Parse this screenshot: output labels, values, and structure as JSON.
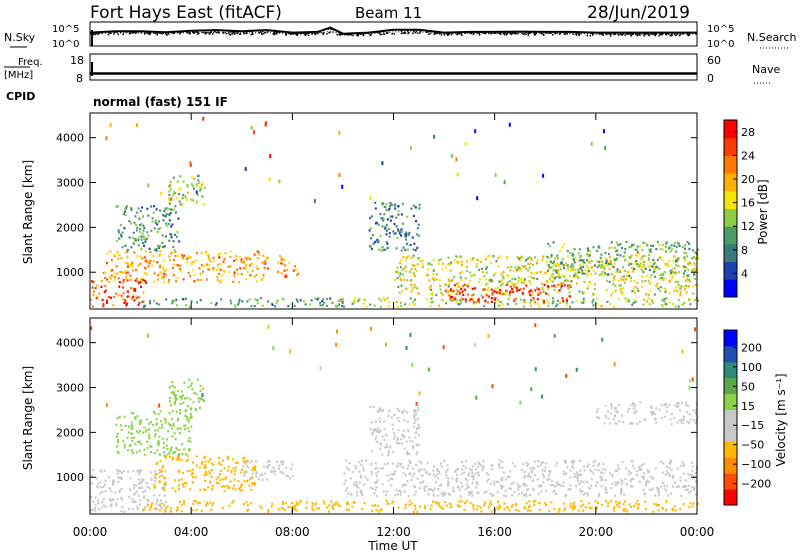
{
  "header": {
    "station": "Fort Hays East (fitACF)",
    "beam": "Beam 11",
    "date": "28/Jun/2019"
  },
  "panels": {
    "nsky": {
      "left_label": "N.Sky",
      "left_ticks": [
        "10^5",
        "10^0"
      ],
      "right_label": "N.Search",
      "right_ticks": [
        "10^5",
        "10^0"
      ]
    },
    "freq": {
      "left_label_1": "Freq.",
      "left_label_2": "[MHz]",
      "left_ticks": [
        "18",
        "8"
      ],
      "right_label": "Nave",
      "right_ticks": [
        "60",
        "0"
      ]
    },
    "cpid": {
      "label": "CPID",
      "mode": "normal (fast) 151 IF"
    }
  },
  "colors": {
    "power_scale": [
      "#0000ff",
      "#1d3fb0",
      "#3a7a7a",
      "#4c9c66",
      "#8ccd44",
      "#f4e400",
      "#ffb000",
      "#ff7a00",
      "#ff3a00",
      "#ff0000"
    ],
    "velocity_scale": [
      "#ff0000",
      "#ff4a00",
      "#ff8c00",
      "#ffb800",
      "#c8c8c8",
      "#c8c8c8",
      "#8ad44a",
      "#5aa846",
      "#2f8a7a",
      "#1f4fb0",
      "#0000ff"
    ]
  },
  "chart_data": [
    {
      "type": "line",
      "panel": "N.Sky / N.Search",
      "x": [
        "00:00",
        "01:00",
        "02:00",
        "03:00",
        "04:00",
        "05:00",
        "06:00",
        "07:00",
        "08:00",
        "09:00",
        "09:30",
        "10:00",
        "11:00",
        "12:00",
        "13:00",
        "14:00",
        "15:00",
        "16:00",
        "17:00",
        "18:00",
        "19:00",
        "20:00",
        "21:00",
        "22:00",
        "23:00",
        "24:00"
      ],
      "series": [
        {
          "name": "N.Sky",
          "values_log10": [
            2.6,
            3.0,
            3.0,
            2.7,
            3.1,
            3.3,
            3.0,
            3.3,
            2.6,
            2.8,
            4.0,
            2.3,
            2.6,
            3.4,
            3.4,
            2.6,
            2.8,
            2.8,
            2.9,
            2.8,
            2.8,
            2.6,
            2.6,
            2.6,
            2.6,
            2.6
          ]
        },
        {
          "name": "N.Search",
          "values_log10": [
            2.3,
            2.5,
            2.5,
            2.4,
            2.6,
            2.6,
            2.5,
            2.6,
            2.3,
            2.4,
            3.0,
            2.1,
            2.3,
            2.8,
            2.8,
            2.3,
            2.4,
            2.4,
            2.4,
            2.4,
            2.3,
            2.2,
            2.2,
            2.2,
            2.2,
            2.2
          ]
        }
      ],
      "yticks": [
        "10^0",
        "10^5"
      ]
    },
    {
      "type": "line",
      "panel": "Freq. / Nave",
      "x": [
        "00:00",
        "24:00"
      ],
      "series": [
        {
          "name": "Freq. [MHz]",
          "values": [
            10.5,
            10.5
          ]
        },
        {
          "name": "Nave",
          "values": [
            11,
            11
          ]
        }
      ],
      "ylim_left": [
        8,
        18
      ],
      "ylim_right": [
        0,
        60
      ]
    },
    {
      "type": "heatmap",
      "panel": "Power",
      "xlabel": "",
      "ylabel": "Slant Range [km]",
      "xticks": [
        "00:00",
        "04:00",
        "08:00",
        "12:00",
        "16:00",
        "20:00",
        "00:00"
      ],
      "yticks": [
        1000,
        2000,
        3000,
        4000
      ],
      "xlim_hours": [
        0,
        24
      ],
      "ylim": [
        180,
        4550
      ],
      "colorbar": {
        "label": "Power [dB]",
        "ticks": [
          4,
          8,
          12,
          16,
          20,
          24,
          28
        ],
        "range": [
          0,
          30
        ]
      },
      "regions": [
        {
          "t0": 0.0,
          "t1": 2.2,
          "r0": 250,
          "r1": 900,
          "level": 24
        },
        {
          "t0": 0.5,
          "t1": 7.0,
          "r0": 800,
          "r1": 1500,
          "level": 20
        },
        {
          "t0": 1.0,
          "t1": 3.5,
          "r0": 1500,
          "r1": 2500,
          "level": 10
        },
        {
          "t0": 3.0,
          "t1": 4.5,
          "r0": 2500,
          "r1": 3200,
          "level": 14
        },
        {
          "t0": 2.0,
          "t1": 10.0,
          "r0": 250,
          "r1": 450,
          "level": 10
        },
        {
          "t0": 7.4,
          "t1": 8.2,
          "r0": 900,
          "r1": 1400,
          "level": 22
        },
        {
          "t0": 9.8,
          "t1": 24.0,
          "r0": 250,
          "r1": 450,
          "level": 14
        },
        {
          "t0": 12.0,
          "t1": 24.0,
          "r0": 500,
          "r1": 1400,
          "level": 16
        },
        {
          "t0": 14.0,
          "t1": 19.0,
          "r0": 350,
          "r1": 750,
          "level": 26
        },
        {
          "t0": 11.0,
          "t1": 13.0,
          "r0": 1500,
          "r1": 2600,
          "level": 8
        },
        {
          "t0": 18.0,
          "t1": 24.0,
          "r0": 900,
          "r1": 1700,
          "level": 12
        }
      ]
    },
    {
      "type": "heatmap",
      "panel": "Velocity",
      "xlabel": "Time UT",
      "ylabel": "Slant Range [km]",
      "xticks": [
        "00:00",
        "04:00",
        "08:00",
        "12:00",
        "16:00",
        "20:00",
        "00:00"
      ],
      "yticks": [
        1000,
        2000,
        3000,
        4000
      ],
      "xlim_hours": [
        0,
        24
      ],
      "ylim": [
        180,
        4550
      ],
      "colorbar": {
        "label": "Velocity [m s^-1]",
        "ticks": [
          -200,
          -100,
          -50,
          -15,
          15,
          50,
          100,
          200
        ],
        "tick_labels": [
          "−200",
          "−100",
          "−50",
          "−15",
          "15",
          "50",
          "100",
          "200"
        ],
        "range": [
          -250,
          250
        ]
      },
      "regions": [
        {
          "t0": 0.0,
          "t1": 3.0,
          "r0": 250,
          "r1": 1200,
          "level": 0
        },
        {
          "t0": 2.5,
          "t1": 6.5,
          "r0": 700,
          "r1": 1500,
          "level": -40
        },
        {
          "t0": 1.0,
          "t1": 4.0,
          "r0": 1500,
          "r1": 2500,
          "level": 40
        },
        {
          "t0": 3.0,
          "t1": 4.5,
          "r0": 2500,
          "r1": 3200,
          "level": 35
        },
        {
          "t0": 6.0,
          "t1": 8.0,
          "r0": 900,
          "r1": 1400,
          "level": 0
        },
        {
          "t0": 2.0,
          "t1": 24.0,
          "r0": 250,
          "r1": 500,
          "level": -40
        },
        {
          "t0": 10.0,
          "t1": 24.0,
          "r0": 600,
          "r1": 1400,
          "level": 0
        },
        {
          "t0": 11.0,
          "t1": 13.0,
          "r0": 1500,
          "r1": 2600,
          "level": 0
        },
        {
          "t0": 20.0,
          "t1": 24.0,
          "r0": 2200,
          "r1": 2700,
          "level": 0
        }
      ]
    }
  ],
  "axes": {
    "xlabel": "Time UT",
    "time_ticks": [
      "00:00",
      "04:00",
      "08:00",
      "12:00",
      "16:00",
      "20:00",
      "00:00"
    ],
    "range_ticks": [
      "1000",
      "2000",
      "3000",
      "4000"
    ],
    "ylabel": "Slant Range [km]",
    "power_label": "Power [dB]",
    "power_ticks": [
      "4",
      "8",
      "12",
      "16",
      "20",
      "24",
      "28"
    ],
    "velocity_label": "Velocity [m s⁻¹]",
    "velocity_ticks": [
      "−200",
      "−100",
      "−50",
      "−15",
      "15",
      "50",
      "100",
      "200"
    ]
  }
}
